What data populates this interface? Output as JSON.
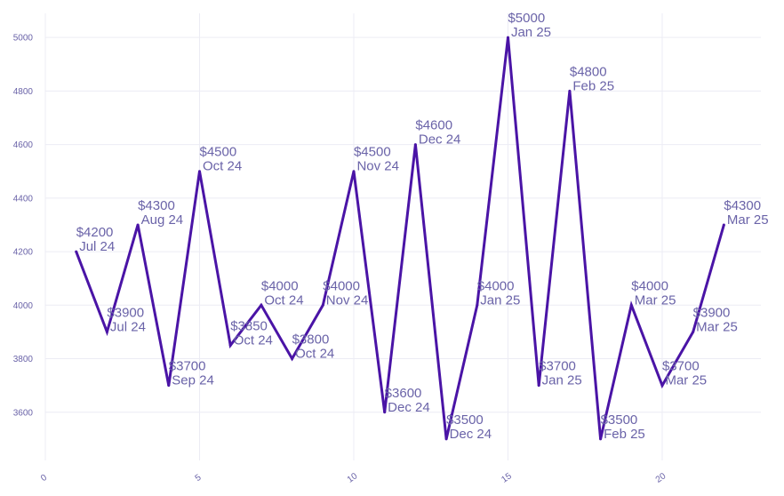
{
  "chart_data": {
    "type": "line",
    "title": "",
    "xlabel": "",
    "ylabel": "",
    "xlim": [
      0,
      23.2
    ],
    "ylim": [
      3420,
      5090
    ],
    "x_ticks": [
      0,
      5,
      10,
      15,
      20
    ],
    "y_ticks": [
      3600,
      3800,
      4000,
      4200,
      4400,
      4600,
      4800,
      5000
    ],
    "grid": true,
    "legend": "none",
    "series": [
      {
        "color": "#4a14a6",
        "points": [
          {
            "x": 1,
            "y": 4200,
            "value_label": "$4200",
            "date_label": "Jul 24"
          },
          {
            "x": 2,
            "y": 3900,
            "value_label": "$3900",
            "date_label": "Jul 24"
          },
          {
            "x": 3,
            "y": 4300,
            "value_label": "$4300",
            "date_label": "Aug 24"
          },
          {
            "x": 4,
            "y": 3700,
            "value_label": "$3700",
            "date_label": "Sep 24"
          },
          {
            "x": 5,
            "y": 4500,
            "value_label": "$4500",
            "date_label": "Oct 24"
          },
          {
            "x": 6,
            "y": 3850,
            "value_label": "$3850",
            "date_label": "Oct 24"
          },
          {
            "x": 7,
            "y": 4000,
            "value_label": "$4000",
            "date_label": "Oct 24"
          },
          {
            "x": 8,
            "y": 3800,
            "value_label": "$3800",
            "date_label": "Oct 24"
          },
          {
            "x": 9,
            "y": 4000,
            "value_label": "$4000",
            "date_label": "Nov 24"
          },
          {
            "x": 10,
            "y": 4500,
            "value_label": "$4500",
            "date_label": "Nov 24"
          },
          {
            "x": 11,
            "y": 3600,
            "value_label": "$3600",
            "date_label": "Dec 24"
          },
          {
            "x": 12,
            "y": 4600,
            "value_label": "$4600",
            "date_label": "Dec 24"
          },
          {
            "x": 13,
            "y": 3500,
            "value_label": "$3500",
            "date_label": "Dec 24"
          },
          {
            "x": 14,
            "y": 4000,
            "value_label": "$4000",
            "date_label": "Jan 25"
          },
          {
            "x": 15,
            "y": 5000,
            "value_label": "$5000",
            "date_label": "Jan 25"
          },
          {
            "x": 16,
            "y": 3700,
            "value_label": "$3700",
            "date_label": "Jan 25"
          },
          {
            "x": 17,
            "y": 4800,
            "value_label": "$4800",
            "date_label": "Feb 25"
          },
          {
            "x": 18,
            "y": 3500,
            "value_label": "$3500",
            "date_label": "Feb 25"
          },
          {
            "x": 19,
            "y": 4000,
            "value_label": "$4000",
            "date_label": "Mar 25"
          },
          {
            "x": 20,
            "y": 3700,
            "value_label": "$3700",
            "date_label": "Mar 25"
          },
          {
            "x": 21,
            "y": 3900,
            "value_label": "$3900",
            "date_label": "Mar 25"
          },
          {
            "x": 22,
            "y": 4300,
            "value_label": "$4300",
            "date_label": "Mar 25"
          }
        ]
      }
    ],
    "colors": {
      "line": "#4a14a6",
      "label_text": "#6a63a8",
      "tick_text": "#6a63a8",
      "grid": "#ececf4"
    }
  }
}
